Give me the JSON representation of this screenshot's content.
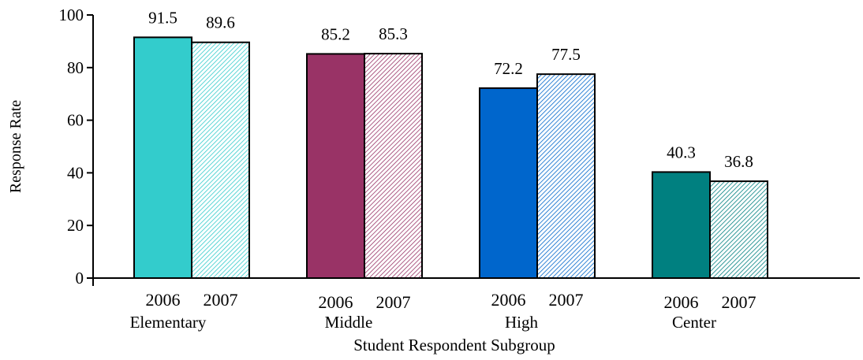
{
  "chart_data": {
    "type": "bar",
    "xlabel": "Student Respondent Subgroup",
    "ylabel": "Response Rate",
    "ylim": [
      0,
      100
    ],
    "yticks": [
      0,
      20,
      40,
      60,
      80,
      100
    ],
    "grid": false,
    "legend": "none",
    "groups": [
      {
        "name": "Elementary",
        "bars": [
          {
            "year": "2006",
            "value": 91.5,
            "label": "91.5",
            "color": "#33CCCC",
            "pattern": "solid"
          },
          {
            "year": "2007",
            "value": 89.6,
            "label": "89.6",
            "color": "#33CCCC",
            "pattern": "hatched"
          }
        ]
      },
      {
        "name": "Middle",
        "bars": [
          {
            "year": "2006",
            "value": 85.2,
            "label": "85.2",
            "color": "#993366",
            "pattern": "solid"
          },
          {
            "year": "2007",
            "value": 85.3,
            "label": "85.3",
            "color": "#993366",
            "pattern": "hatched"
          }
        ]
      },
      {
        "name": "High",
        "bars": [
          {
            "year": "2006",
            "value": 72.2,
            "label": "72.2",
            "color": "#0066CC",
            "pattern": "solid"
          },
          {
            "year": "2007",
            "value": 77.5,
            "label": "77.5",
            "color": "#0066CC",
            "pattern": "hatched"
          }
        ]
      },
      {
        "name": "Center",
        "bars": [
          {
            "year": "2006",
            "value": 40.3,
            "label": "40.3",
            "color": "#008080",
            "pattern": "solid"
          },
          {
            "year": "2007",
            "value": 36.8,
            "label": "36.8",
            "color": "#008080",
            "pattern": "hatched"
          }
        ]
      }
    ]
  }
}
